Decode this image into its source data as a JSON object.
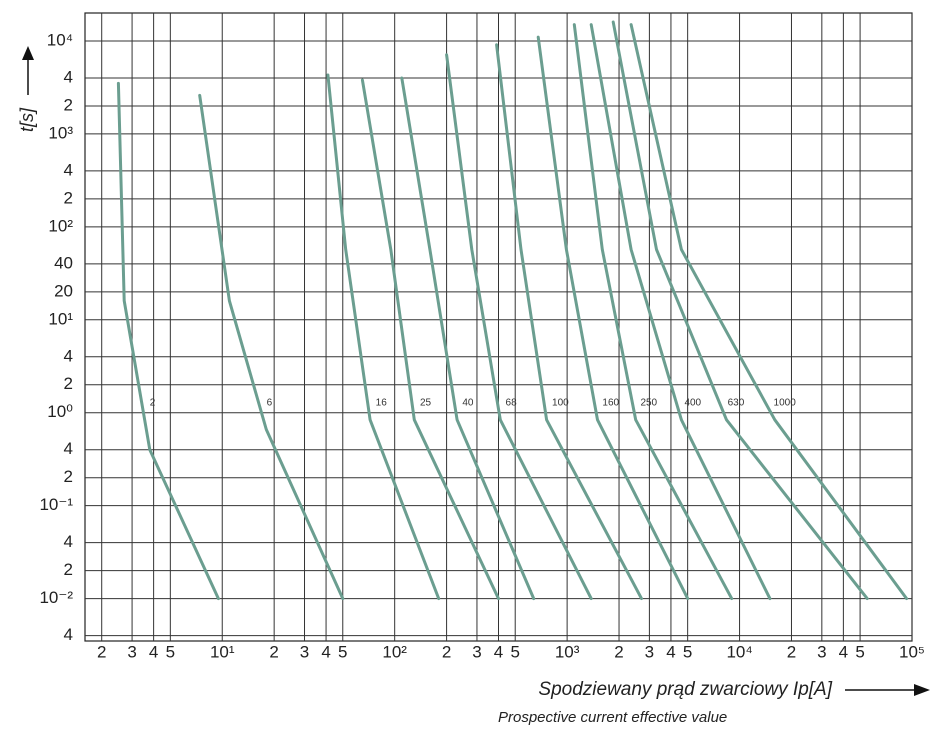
{
  "chart_data": {
    "type": "line",
    "log_x": true,
    "log_y": true,
    "grid": true,
    "color": "#6b9e90",
    "ylabel": "t[s]",
    "xlabel": "Spodziewany prąd zwarciowy Ip[A]",
    "xlabel_sub": "Prospective current effective value",
    "xlim": [
      1.6,
      100000
    ],
    "ylim": [
      0.0035,
      20000
    ],
    "xticks": [
      2,
      3,
      4,
      5,
      {
        "value": 10,
        "label": "10¹"
      },
      {
        "value": 20,
        "label": "2"
      },
      {
        "value": 30,
        "label": "3"
      },
      {
        "value": 40,
        "label": "4"
      },
      {
        "value": 50,
        "label": "5"
      },
      {
        "value": 100,
        "label": "10²"
      },
      {
        "value": 200,
        "label": "2"
      },
      {
        "value": 300,
        "label": "3"
      },
      {
        "value": 400,
        "label": "4"
      },
      {
        "value": 500,
        "label": "5"
      },
      {
        "value": 1000,
        "label": "10³"
      },
      {
        "value": 2000,
        "label": "2"
      },
      {
        "value": 3000,
        "label": "3"
      },
      {
        "value": 4000,
        "label": "4"
      },
      {
        "value": 5000,
        "label": "5"
      },
      {
        "value": 10000,
        "label": "10⁴"
      },
      {
        "value": 20000,
        "label": "2"
      },
      {
        "value": 30000,
        "label": "3"
      },
      {
        "value": 40000,
        "label": "4"
      },
      {
        "value": 50000,
        "label": "5"
      },
      {
        "value": 100000,
        "label": "10⁵"
      }
    ],
    "yticks": [
      {
        "value": 10000,
        "label": "10⁴"
      },
      {
        "value": 4000,
        "label": "4"
      },
      {
        "value": 2000,
        "label": "2"
      },
      {
        "value": 1000,
        "label": "10³"
      },
      {
        "value": 400,
        "label": "4"
      },
      {
        "value": 200,
        "label": "2"
      },
      {
        "value": 100,
        "label": "10²"
      },
      40,
      20,
      {
        "value": 10,
        "label": "10¹"
      },
      4,
      2,
      {
        "value": 1,
        "label": "10⁰"
      },
      {
        "value": 0.4,
        "label": "4"
      },
      {
        "value": 0.2,
        "label": "2"
      },
      {
        "value": 0.1,
        "label": "10⁻¹"
      },
      {
        "value": 0.04,
        "label": "4"
      },
      {
        "value": 0.02,
        "label": "2"
      },
      {
        "value": 0.01,
        "label": "10⁻²"
      },
      {
        "value": 0.004,
        "label": "4"
      }
    ],
    "series": [
      {
        "name": "2",
        "x": [
          2.5,
          2.7,
          3.8,
          9.5
        ],
        "values": [
          3500,
          16,
          0.4,
          0.01
        ]
      },
      {
        "name": "6",
        "x": [
          7.4,
          11,
          18,
          50
        ],
        "values": [
          2600,
          16,
          0.66,
          0.01
        ]
      },
      {
        "name": "16",
        "x": [
          41,
          52,
          72,
          180
        ],
        "values": [
          4300,
          57,
          0.84,
          0.01
        ]
      },
      {
        "name": "25",
        "x": [
          65,
          95,
          130,
          400
        ],
        "values": [
          3800,
          57,
          0.84,
          0.01
        ]
      },
      {
        "name": "40",
        "x": [
          110,
          160,
          230,
          640
        ],
        "values": [
          4000,
          57,
          0.84,
          0.01
        ]
      },
      {
        "name": "68",
        "x": [
          200,
          280,
          410,
          1380
        ],
        "values": [
          7100,
          57,
          0.84,
          0.01
        ]
      },
      {
        "name": "100",
        "x": [
          390,
          540,
          760,
          2700
        ],
        "values": [
          9100,
          57,
          0.84,
          0.01
        ]
      },
      {
        "name": "160",
        "x": [
          680,
          990,
          1500,
          5000
        ],
        "values": [
          11000,
          57,
          0.84,
          0.01
        ]
      },
      {
        "name": "250",
        "x": [
          1100,
          1600,
          2500,
          9000
        ],
        "values": [
          15000,
          57,
          0.84,
          0.01
        ]
      },
      {
        "name": "400",
        "x": [
          1380,
          2350,
          4600,
          15000
        ],
        "values": [
          15000,
          57,
          0.84,
          0.01
        ]
      },
      {
        "name": "630",
        "x": [
          1850,
          3300,
          8400,
          55000
        ],
        "values": [
          16000,
          57,
          0.84,
          0.01
        ]
      },
      {
        "name": "1000",
        "x": [
          2350,
          4600,
          16000,
          93000
        ],
        "values": [
          15000,
          57,
          0.84,
          0.01
        ]
      }
    ]
  }
}
